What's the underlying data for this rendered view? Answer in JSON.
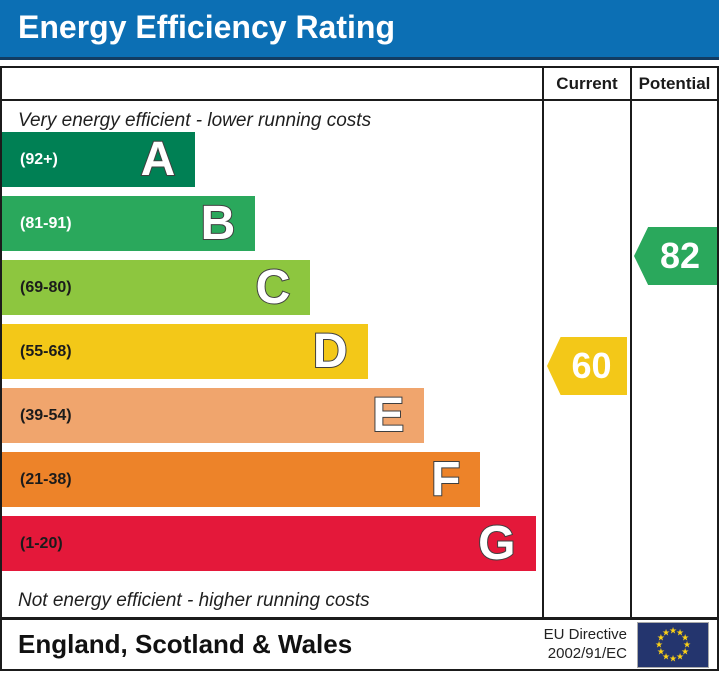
{
  "title": "Energy Efficiency Rating",
  "notes": {
    "top": "Very energy efficient - lower running costs",
    "bottom": "Not energy efficient - higher running costs"
  },
  "chart_data": {
    "type": "epc_energy_efficiency_bar",
    "title": "Energy Efficiency Rating",
    "bands": [
      {
        "letter": "A",
        "range_label": "(92+)",
        "score_min": 92,
        "score_max": 100,
        "color": "#008054",
        "range_text_color": "#ffffff",
        "width_pct": 35.8
      },
      {
        "letter": "B",
        "range_label": "(81-91)",
        "score_min": 81,
        "score_max": 91,
        "color": "#2aa85c",
        "range_text_color": "#ffffff",
        "width_pct": 46.9
      },
      {
        "letter": "C",
        "range_label": "(69-80)",
        "score_min": 69,
        "score_max": 80,
        "color": "#8dc63f",
        "range_text_color": "#1b1b1b",
        "width_pct": 57.1
      },
      {
        "letter": "D",
        "range_label": "(55-68)",
        "score_min": 55,
        "score_max": 68,
        "color": "#f3c818",
        "range_text_color": "#1b1b1b",
        "width_pct": 67.7
      },
      {
        "letter": "E",
        "range_label": "(39-54)",
        "score_min": 39,
        "score_max": 54,
        "color": "#f0a56d",
        "range_text_color": "#1b1b1b",
        "width_pct": 78.2
      },
      {
        "letter": "F",
        "range_label": "(21-38)",
        "score_min": 21,
        "score_max": 38,
        "color": "#ed8329",
        "range_text_color": "#1b1b1b",
        "width_pct": 88.6
      },
      {
        "letter": "G",
        "range_label": "(1-20)",
        "score_min": 1,
        "score_max": 20,
        "color": "#e4183a",
        "range_text_color": "#1b1b1b",
        "width_pct": 98.8
      }
    ],
    "current": {
      "label": "Current",
      "value": 60,
      "band": "D",
      "color": "#f3c818"
    },
    "potential": {
      "label": "Potential",
      "value": 82,
      "band": "B",
      "color": "#2aa85c"
    }
  },
  "footer": {
    "region": "England, Scotland & Wales",
    "directive_line1": "EU Directive",
    "directive_line2": "2002/91/EC",
    "flag": "eu-flag",
    "flag_star_count": 12
  },
  "colors": {
    "title_bar": "#0c6fb4",
    "title_text": "#ffffff",
    "border": "#1b1b1b",
    "flag_background": "#24356e",
    "flag_star": "#fcd116"
  }
}
